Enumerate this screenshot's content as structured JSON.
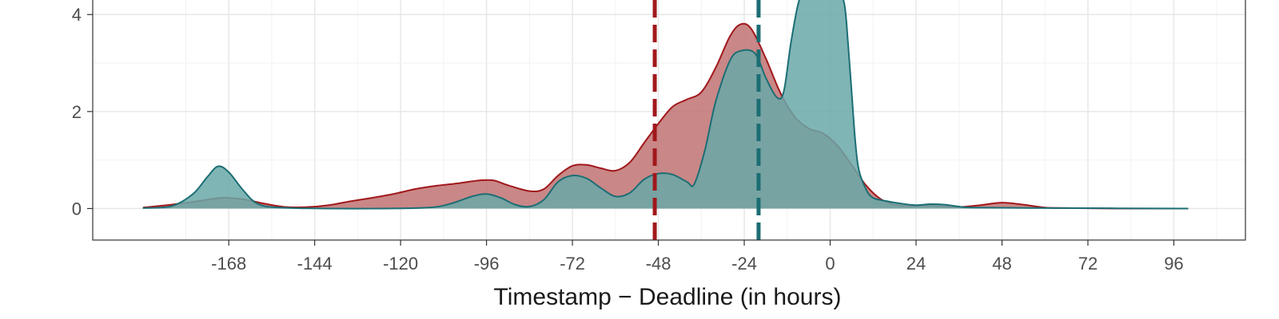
{
  "chart_data": {
    "type": "area",
    "title": "",
    "xlabel": "Timestamp − Deadline (in hours)",
    "ylabel": "",
    "xlim": [
      -206,
      116
    ],
    "ylim": [
      -0.65,
      4.3
    ],
    "x_ticks": [
      -168,
      -144,
      -120,
      -96,
      -72,
      -48,
      -24,
      0,
      24,
      48,
      72,
      96
    ],
    "x_tick_labels": [
      "-168",
      "-144",
      "-120",
      "-96",
      "-72",
      "-48",
      "-24",
      "0",
      "24",
      "48",
      "72",
      "96"
    ],
    "y_ticks": [
      0,
      2,
      4
    ],
    "y_tick_labels": [
      "0",
      "2",
      "4"
    ],
    "grid": true,
    "legend": "none",
    "series": [
      {
        "name": "red",
        "fill": "#c07272",
        "stroke": "#a1181c",
        "vline": -49,
        "points": [
          [
            -192,
            0.02
          ],
          [
            -184,
            0.08
          ],
          [
            -176,
            0.16
          ],
          [
            -170,
            0.22
          ],
          [
            -164,
            0.19
          ],
          [
            -158,
            0.1
          ],
          [
            -152,
            0.03
          ],
          [
            -146,
            0.03
          ],
          [
            -140,
            0.07
          ],
          [
            -134,
            0.15
          ],
          [
            -128,
            0.22
          ],
          [
            -122,
            0.3
          ],
          [
            -116,
            0.4
          ],
          [
            -110,
            0.47
          ],
          [
            -104,
            0.52
          ],
          [
            -98,
            0.58
          ],
          [
            -94,
            0.58
          ],
          [
            -90,
            0.48
          ],
          [
            -84,
            0.36
          ],
          [
            -80,
            0.4
          ],
          [
            -76,
            0.68
          ],
          [
            -72,
            0.88
          ],
          [
            -68,
            0.9
          ],
          [
            -64,
            0.83
          ],
          [
            -60,
            0.78
          ],
          [
            -56,
            0.95
          ],
          [
            -52,
            1.35
          ],
          [
            -48,
            1.75
          ],
          [
            -44,
            2.1
          ],
          [
            -40,
            2.25
          ],
          [
            -36,
            2.4
          ],
          [
            -32,
            2.9
          ],
          [
            -28,
            3.55
          ],
          [
            -25,
            3.8
          ],
          [
            -22,
            3.7
          ],
          [
            -18,
            3.1
          ],
          [
            -14,
            2.4
          ],
          [
            -10,
            1.9
          ],
          [
            -6,
            1.65
          ],
          [
            -2,
            1.55
          ],
          [
            2,
            1.3
          ],
          [
            6,
            0.9
          ],
          [
            10,
            0.48
          ],
          [
            14,
            0.2
          ],
          [
            18,
            0.08
          ],
          [
            22,
            0.05
          ],
          [
            26,
            0.06
          ],
          [
            30,
            0.05
          ],
          [
            36,
            0.03
          ],
          [
            42,
            0.07
          ],
          [
            48,
            0.12
          ],
          [
            54,
            0.08
          ],
          [
            60,
            0.02
          ],
          [
            66,
            0.01
          ],
          [
            80,
            0.0
          ],
          [
            100,
            0.0
          ]
        ]
      },
      {
        "name": "teal",
        "fill": "#6aa8a8",
        "stroke": "#1b6e74",
        "vline": -20,
        "points": [
          [
            -192,
            0.01
          ],
          [
            -184,
            0.05
          ],
          [
            -178,
            0.3
          ],
          [
            -174,
            0.65
          ],
          [
            -171,
            0.87
          ],
          [
            -168,
            0.75
          ],
          [
            -164,
            0.38
          ],
          [
            -160,
            0.1
          ],
          [
            -154,
            0.02
          ],
          [
            -140,
            0.0
          ],
          [
            -125,
            0.0
          ],
          [
            -112,
            0.02
          ],
          [
            -106,
            0.1
          ],
          [
            -100,
            0.25
          ],
          [
            -96,
            0.3
          ],
          [
            -92,
            0.22
          ],
          [
            -88,
            0.08
          ],
          [
            -84,
            0.04
          ],
          [
            -80,
            0.18
          ],
          [
            -76,
            0.55
          ],
          [
            -72,
            0.68
          ],
          [
            -68,
            0.62
          ],
          [
            -64,
            0.42
          ],
          [
            -60,
            0.25
          ],
          [
            -56,
            0.32
          ],
          [
            -52,
            0.6
          ],
          [
            -48,
            0.72
          ],
          [
            -44,
            0.7
          ],
          [
            -40,
            0.55
          ],
          [
            -38,
            0.5
          ],
          [
            -35,
            1.2
          ],
          [
            -32,
            2.2
          ],
          [
            -28,
            3.05
          ],
          [
            -25,
            3.25
          ],
          [
            -21,
            3.2
          ],
          [
            -18,
            2.7
          ],
          [
            -15,
            2.3
          ],
          [
            -13,
            2.4
          ],
          [
            -11,
            3.4
          ],
          [
            -9,
            4.2
          ],
          [
            -7,
            4.6
          ],
          [
            -4,
            4.8
          ],
          [
            0,
            4.75
          ],
          [
            2,
            4.6
          ],
          [
            4,
            4.2
          ],
          [
            5,
            3.4
          ],
          [
            6,
            2.4
          ],
          [
            7,
            1.4
          ],
          [
            8,
            0.8
          ],
          [
            10,
            0.4
          ],
          [
            12,
            0.22
          ],
          [
            16,
            0.15
          ],
          [
            20,
            0.1
          ],
          [
            24,
            0.07
          ],
          [
            28,
            0.09
          ],
          [
            32,
            0.08
          ],
          [
            36,
            0.04
          ],
          [
            40,
            0.02
          ],
          [
            60,
            0.01
          ],
          [
            100,
            0.0
          ]
        ]
      }
    ]
  }
}
